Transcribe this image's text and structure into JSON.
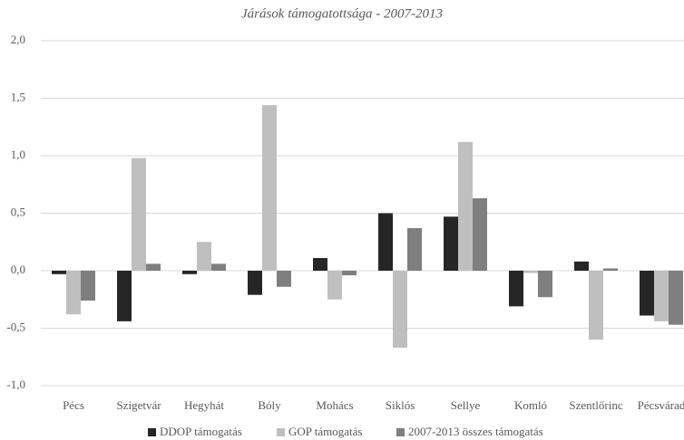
{
  "chart_data": {
    "type": "bar",
    "title": "Járások támogatottsága - 2007-2013",
    "categories": [
      "Pécs",
      "Szigetvár",
      "Hegyhát",
      "Bóly",
      "Mohács",
      "Siklós",
      "Sellye",
      "Komló",
      "Szentlőrinc",
      "Pécsvárad"
    ],
    "series": [
      {
        "name": "DDOP támogatás",
        "color": "#262626",
        "values": [
          -0.03,
          -0.44,
          -0.03,
          -0.21,
          0.11,
          0.5,
          0.47,
          -0.31,
          0.08,
          -0.39
        ]
      },
      {
        "name": "GOP támogatás",
        "color": "#bfbfbf",
        "values": [
          -0.38,
          0.98,
          0.25,
          1.44,
          -0.25,
          -0.67,
          1.12,
          -0.02,
          -0.6,
          -0.44
        ]
      },
      {
        "name": "2007-2013 összes támogatás",
        "color": "#7f7f7f",
        "values": [
          -0.26,
          0.06,
          0.06,
          -0.14,
          -0.04,
          0.37,
          0.63,
          -0.23,
          0.02,
          -0.47
        ]
      }
    ],
    "ylim": [
      -1,
      2
    ],
    "yticks": [
      {
        "value": -1,
        "label": "-1,0"
      },
      {
        "value": -0.5,
        "label": "-0,5"
      },
      {
        "value": 0,
        "label": "0,0"
      },
      {
        "value": 0.5,
        "label": "0,5"
      },
      {
        "value": 1,
        "label": "1,0"
      },
      {
        "value": 1.5,
        "label": "1,5"
      },
      {
        "value": 2,
        "label": "2,0"
      }
    ],
    "grid": true,
    "legend": "bottom"
  }
}
